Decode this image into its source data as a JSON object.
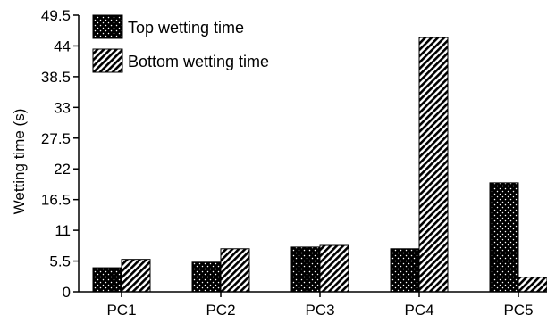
{
  "chart_data": {
    "type": "bar",
    "categories": [
      "PC1",
      "PC2",
      "PC3",
      "PC4",
      "PC5"
    ],
    "series": [
      {
        "name": "Top wetting time",
        "values": [
          4.3,
          5.3,
          8.0,
          7.7,
          19.5
        ],
        "pattern": "dots"
      },
      {
        "name": "Bottom wetting time",
        "values": [
          5.8,
          7.7,
          8.3,
          45.5,
          2.6
        ],
        "pattern": "hatch"
      }
    ],
    "title": "",
    "xlabel": "",
    "ylabel": "Wetting time (s)",
    "ylim": [
      0,
      49.5
    ],
    "yticks": [
      "0",
      "5.5",
      "11",
      "16.5",
      "22",
      "27.5",
      "33",
      "38.5",
      "44",
      "49.5"
    ],
    "grid": false,
    "legend_position": "top-left",
    "colors": {
      "bar_fill": "#000000",
      "background": "#ffffff",
      "axis": "#000000"
    }
  }
}
